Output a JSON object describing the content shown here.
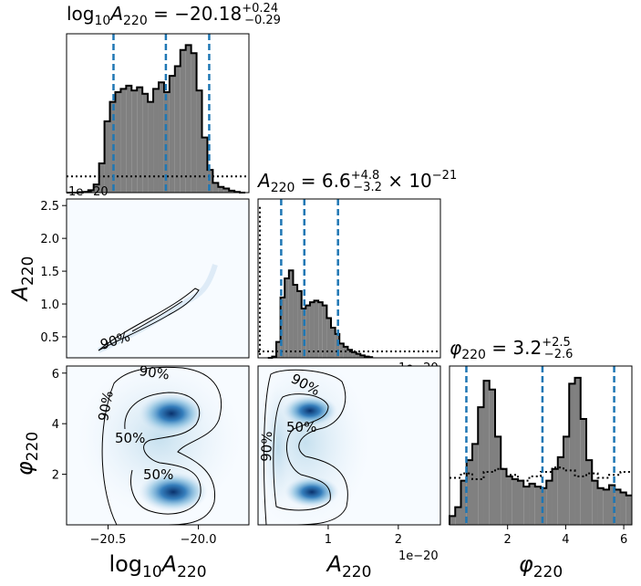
{
  "colors": {
    "hist_fill": "#808080",
    "quantile_line": "#1f77b4",
    "density_light": "#f4f9fe",
    "density_mid": "#6aaed6",
    "density_dark": "#08306b",
    "contour": "#000000"
  },
  "titles": {
    "logA": "log10A220 = −20.18 (+0.24 / −0.29)",
    "A": "A220 = 6.6 (+4.8 / −3.2) × 10^−21",
    "phi": "φ220 = 3.2 (+2.5 / −2.6)"
  },
  "axis_labels": {
    "x_logA": "log10A220",
    "x_A": "A220",
    "x_phi": "φ220",
    "y_A": "A220",
    "y_phi": "φ220"
  },
  "offset_texts": {
    "top_hist": "1e−20",
    "mid_hist": "1e−20",
    "bottom_A": "1e−20"
  },
  "contour_labels": [
    "90%",
    "50%"
  ],
  "chart_data": {
    "type": "corner",
    "params": [
      "log10A220",
      "A220",
      "phi220"
    ],
    "ranges": {
      "log10A220": [
        -20.73,
        -19.72
      ],
      "A220": [
        0,
        2.6
      ],
      "phi220": [
        0,
        6.28
      ]
    },
    "ticks": {
      "log10A220": [
        -20.5,
        -20.0
      ],
      "A220_x": [
        1,
        2
      ],
      "A220_y": [
        0.5,
        1.0,
        1.5,
        2.0,
        2.5
      ],
      "phi220": [
        2,
        4,
        6
      ]
    },
    "marginals": {
      "log10A220": {
        "median": -20.18,
        "upper_err": 0.24,
        "lower_err": 0.29,
        "quantiles": [
          -20.47,
          -20.18,
          -19.94
        ],
        "bins": [
          -20.73,
          -20.7,
          -20.67,
          -20.64,
          -20.61,
          -20.58,
          -20.55,
          -20.52,
          -20.49,
          -20.46,
          -20.43,
          -20.4,
          -20.37,
          -20.34,
          -20.31,
          -20.28,
          -20.25,
          -20.22,
          -20.19,
          -20.16,
          -20.13,
          -20.1,
          -20.07,
          -20.04,
          -20.01,
          -19.98,
          -19.95,
          -19.92,
          -19.89,
          -19.86,
          -19.83,
          -19.8,
          -19.77,
          -19.74
        ],
        "density": [
          0,
          0,
          0,
          0.004,
          0.015,
          0.05,
          0.18,
          0.44,
          0.56,
          0.62,
          0.64,
          0.66,
          0.63,
          0.65,
          0.61,
          0.56,
          0.64,
          0.68,
          0.62,
          0.72,
          0.78,
          0.88,
          0.91,
          0.86,
          0.63,
          0.34,
          0.14,
          0.06,
          0.035,
          0.025,
          0.012,
          0.004,
          0
        ],
        "prior": 0.1
      },
      "A220": {
        "median": 6.6,
        "upper_err": 4.8,
        "lower_err": 3.2,
        "exponent": -21,
        "quantiles": [
          0.33,
          0.66,
          1.14
        ],
        "bins": [
          0.14,
          0.2,
          0.26,
          0.32,
          0.38,
          0.44,
          0.5,
          0.56,
          0.62,
          0.68,
          0.74,
          0.8,
          0.86,
          0.92,
          0.98,
          1.04,
          1.1,
          1.16,
          1.22,
          1.28,
          1.34,
          1.4,
          1.46,
          1.52,
          1.58,
          1.64
        ],
        "density": [
          0,
          0.008,
          0.1,
          0.38,
          0.5,
          0.55,
          0.46,
          0.42,
          0.31,
          0.33,
          0.35,
          0.36,
          0.35,
          0.33,
          0.25,
          0.19,
          0.15,
          0.09,
          0.07,
          0.05,
          0.035,
          0.025,
          0.015,
          0.008,
          0.004
        ],
        "prior": 0.04,
        "prior_spike": 0.95
      },
      "phi220": {
        "median": 3.2,
        "upper_err": 2.5,
        "lower_err": 2.6,
        "quantiles": [
          0.58,
          3.2,
          5.67
        ],
        "bins": [
          0,
          0.196,
          0.392,
          0.588,
          0.785,
          0.981,
          1.177,
          1.374,
          1.57,
          1.766,
          1.963,
          2.159,
          2.355,
          2.551,
          2.748,
          2.944,
          3.14,
          3.336,
          3.533,
          3.729,
          3.925,
          4.121,
          4.318,
          4.514,
          4.71,
          4.906,
          5.103,
          5.299,
          5.495,
          5.691,
          5.888,
          6.084,
          6.28
        ],
        "density": [
          0.06,
          0.12,
          0.3,
          0.44,
          0.55,
          0.8,
          0.98,
          0.92,
          0.6,
          0.38,
          0.33,
          0.31,
          0.3,
          0.26,
          0.28,
          0.26,
          0.25,
          0.3,
          0.38,
          0.46,
          0.6,
          0.96,
          1.0,
          0.72,
          0.44,
          0.3,
          0.25,
          0.24,
          0.27,
          0.24,
          0.22,
          0.2
        ],
        "prior": [
          0.32,
          0.35,
          0.31,
          0.36,
          0.38,
          0.34,
          0.3,
          0.33,
          0.36,
          0.39,
          0.37,
          0.33,
          0.35,
          0.32,
          0.34,
          0.36
        ]
      }
    },
    "joint": {
      "logA_vs_A": {
        "trend": [
          [
            -20.5,
            0.33
          ],
          [
            -20.4,
            0.38
          ],
          [
            -20.3,
            0.45
          ],
          [
            -20.2,
            0.56
          ],
          [
            -20.1,
            0.72
          ],
          [
            -20.0,
            0.95
          ],
          [
            -19.9,
            1.2
          ]
        ],
        "contours": [
          "90%"
        ]
      },
      "logA_vs_phi": {
        "modes": [
          [
            -20.05,
            4.4
          ],
          [
            -20.07,
            1.3
          ]
        ],
        "contours": [
          "90%",
          "50%"
        ]
      },
      "A_vs_phi": {
        "modes": [
          [
            0.85,
            4.45
          ],
          [
            0.88,
            1.3
          ]
        ],
        "contours": [
          "90%",
          "50%"
        ]
      }
    }
  }
}
